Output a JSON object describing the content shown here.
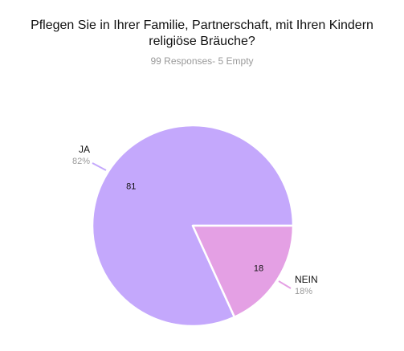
{
  "chart_data": {
    "type": "pie",
    "title_lines": [
      "Pflegen Sie in Ihrer Familie, Partnerschaft, mit Ihren Kindern",
      "religiöse Bräuche?"
    ],
    "subtitle": "99 Responses- 5 Empty",
    "slices": [
      {
        "label": "JA",
        "value": 81,
        "percent_label": "82%",
        "color": "#c4a8fc"
      },
      {
        "label": "NEIN",
        "value": 18,
        "percent_label": "18%",
        "color": "#e4a0e4"
      }
    ]
  }
}
